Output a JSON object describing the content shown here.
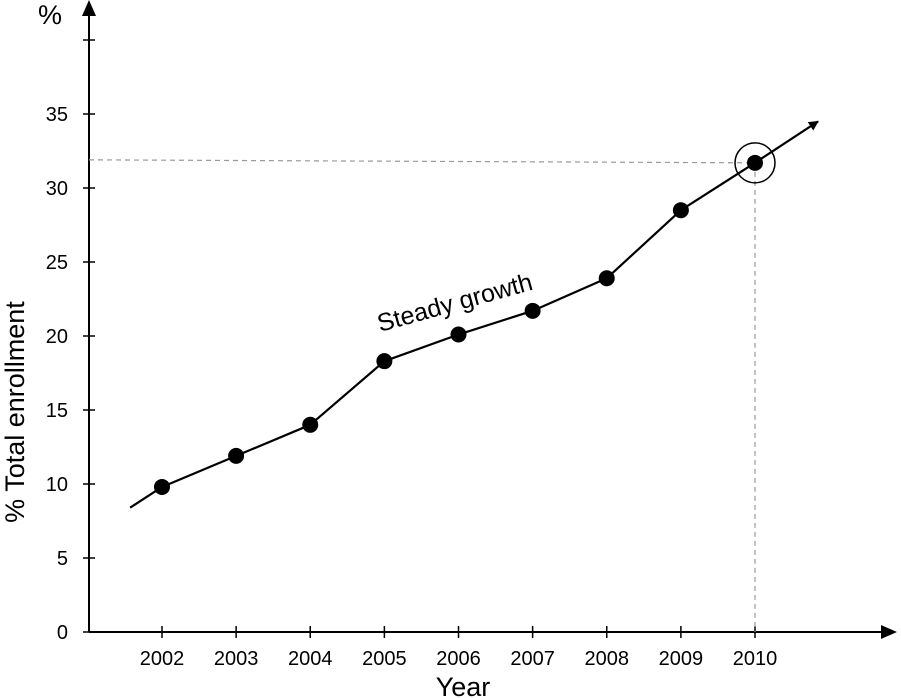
{
  "chart_data": {
    "type": "line",
    "title": "",
    "xlabel": "Year",
    "ylabel": "% Total enrollment",
    "y_unit_label": "%",
    "categories": [
      "2002",
      "2003",
      "2004",
      "2005",
      "2006",
      "2007",
      "2008",
      "2009",
      "2010"
    ],
    "series": [
      {
        "name": "% Total enrollment",
        "values": [
          9.8,
          11.9,
          14.0,
          18.3,
          20.1,
          21.7,
          23.9,
          28.5,
          31.7
        ]
      }
    ],
    "trend_line_start": {
      "x": 2001.57,
      "y": 8.4
    },
    "trend_arrow_end": {
      "x": 2010.85,
      "y": 34.5
    },
    "yticks": [
      0,
      5,
      10,
      15,
      20,
      25,
      30,
      35
    ],
    "ylim": [
      0,
      40
    ],
    "highlighted_point": {
      "x": "2010",
      "y": 31.7
    },
    "annotation": "Steady growth",
    "grid": false
  }
}
